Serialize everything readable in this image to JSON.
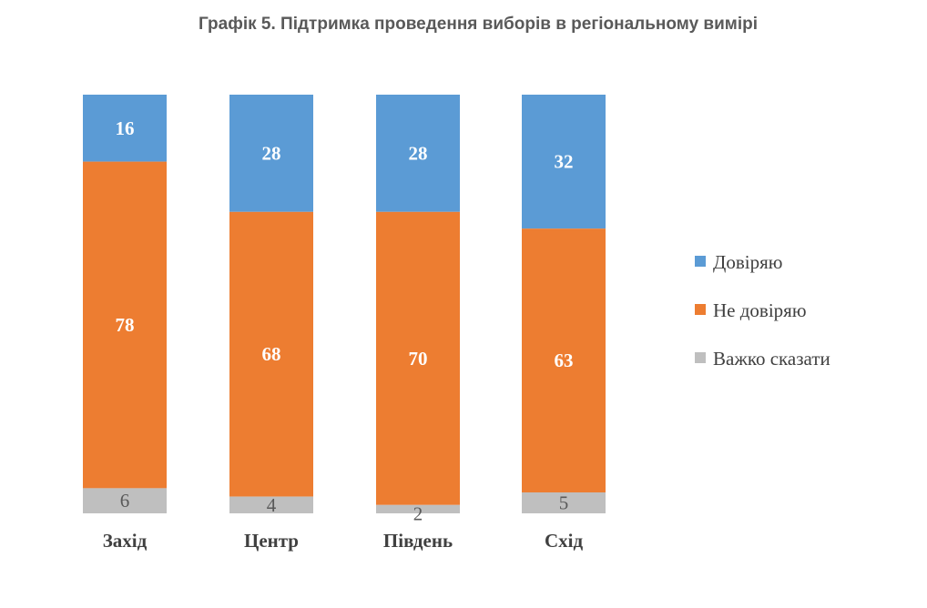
{
  "chart_data": {
    "type": "bar",
    "stacked": true,
    "title": "Графік 5. Підтримка проведення виборів в регіональному вимірі",
    "categories": [
      "Захід",
      "Центр",
      "Південь",
      "Схід"
    ],
    "series": [
      {
        "name": "Довіряю",
        "values": [
          16,
          28,
          28,
          32
        ],
        "color": "#5b9bd5"
      },
      {
        "name": "Не довіряю",
        "values": [
          78,
          68,
          70,
          63
        ],
        "color": "#ed7d31"
      },
      {
        "name": "Важко сказати",
        "values": [
          6,
          4,
          2,
          5
        ],
        "color": "#bfbfbf"
      }
    ],
    "legend_position": "right",
    "grid": false
  }
}
